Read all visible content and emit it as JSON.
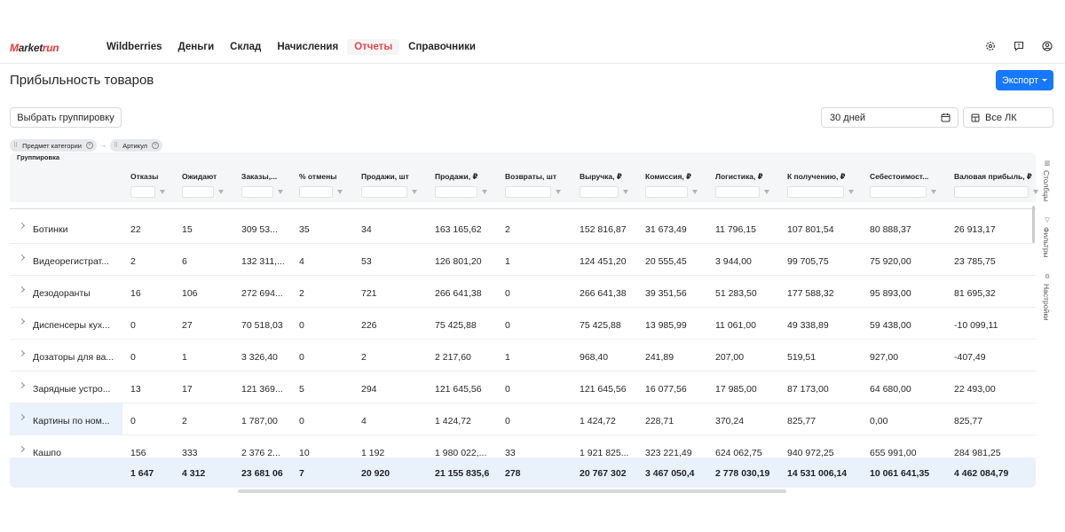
{
  "brand": {
    "logo_prefix": "M",
    "logo_middle": "arket",
    "logo_suffix": "run"
  },
  "nav": {
    "items": [
      {
        "label": "Wildberries",
        "active": false
      },
      {
        "label": "Деньги",
        "active": false
      },
      {
        "label": "Склад",
        "active": false
      },
      {
        "label": "Начисления",
        "active": false
      },
      {
        "label": "Отчеты",
        "active": true
      },
      {
        "label": "Справочники",
        "active": false
      }
    ],
    "right_icons": [
      "settings-icon",
      "feedback-icon",
      "user-icon"
    ]
  },
  "page": {
    "title": "Прибыльность товаров",
    "export_label": "Экспорт"
  },
  "toolbar": {
    "grouping_button": "Выбрать группировку",
    "period_value": "30 дней",
    "cabinet_value": "Все ЛК"
  },
  "chips": [
    "Предмет категории",
    "Артикул"
  ],
  "table": {
    "group_label": "Группировка",
    "columns": [
      "Отказы",
      "Ожидают",
      "Заказы,...",
      "% отмены",
      "Продажи, шт",
      "Продажи, ₽",
      "Возвраты, шт",
      "Выручка, ₽",
      "Комиссия, ₽",
      "Логистика, ₽",
      "К получению, ₽",
      "Себестоимост...",
      "Валовая прибыль, ₽"
    ],
    "rows": [
      {
        "name": "Ботинки",
        "cells": [
          "22",
          "15",
          "309 53...",
          "35",
          "34",
          "163 165,62",
          "2",
          "152 816,87",
          "31 673,49",
          "11 796,15",
          "107 801,54",
          "80 888,37",
          "26 913,17"
        ]
      },
      {
        "name": "Видеорегистрат...",
        "cells": [
          "2",
          "6",
          "132 311,...",
          "4",
          "53",
          "126 801,20",
          "1",
          "124 451,20",
          "20 555,45",
          "3 944,00",
          "99 705,75",
          "75 920,00",
          "23 785,75"
        ]
      },
      {
        "name": "Дезодоранты",
        "cells": [
          "16",
          "106",
          "272 694...",
          "2",
          "721",
          "266 641,38",
          "0",
          "266 641,38",
          "39 351,56",
          "51 283,50",
          "177 588,32",
          "95 893,00",
          "81 695,32"
        ]
      },
      {
        "name": "Диспенсеры кух...",
        "cells": [
          "0",
          "27",
          "70 518,03",
          "0",
          "226",
          "75 425,88",
          "0",
          "75 425,88",
          "13 985,99",
          "11 061,00",
          "49 338,89",
          "59 438,00",
          "-10 099,11"
        ]
      },
      {
        "name": "Дозаторы для ва...",
        "cells": [
          "0",
          "1",
          "3 326,40",
          "0",
          "2",
          "2 217,60",
          "1",
          "968,40",
          "241,89",
          "207,00",
          "519,51",
          "927,00",
          "-407,49"
        ]
      },
      {
        "name": "Зарядные устро...",
        "cells": [
          "13",
          "17",
          "121 369...",
          "5",
          "294",
          "121 645,56",
          "0",
          "121 645,56",
          "16 077,56",
          "17 985,00",
          "87 173,00",
          "64 680,00",
          "22 493,00"
        ]
      },
      {
        "name": "Картины по ном...",
        "cells": [
          "0",
          "2",
          "1 787,00",
          "0",
          "4",
          "1 424,72",
          "0",
          "1 424,72",
          "228,71",
          "370,24",
          "825,77",
          "0,00",
          "825,77"
        ]
      },
      {
        "name": "Кашпо",
        "cells": [
          "156",
          "333",
          "2 376 2...",
          "10",
          "1 192",
          "1 980 022,...",
          "33",
          "1 921 825...",
          "323 221,49",
          "624 062,75",
          "940 972,25",
          "655 991,00",
          "284 981,25"
        ]
      }
    ],
    "totals": [
      "1 647",
      "4 312",
      "23 681 06",
      "7",
      "20 920",
      "21 155 835,6",
      "278",
      "20 767 302",
      "3 467 050,4",
      "2 778 030,19",
      "14 531 006,14",
      "10 061 641,35",
      "4 462 084,79"
    ]
  },
  "side_panel": [
    "Столбцы",
    "Фильтры",
    "Настройки"
  ]
}
